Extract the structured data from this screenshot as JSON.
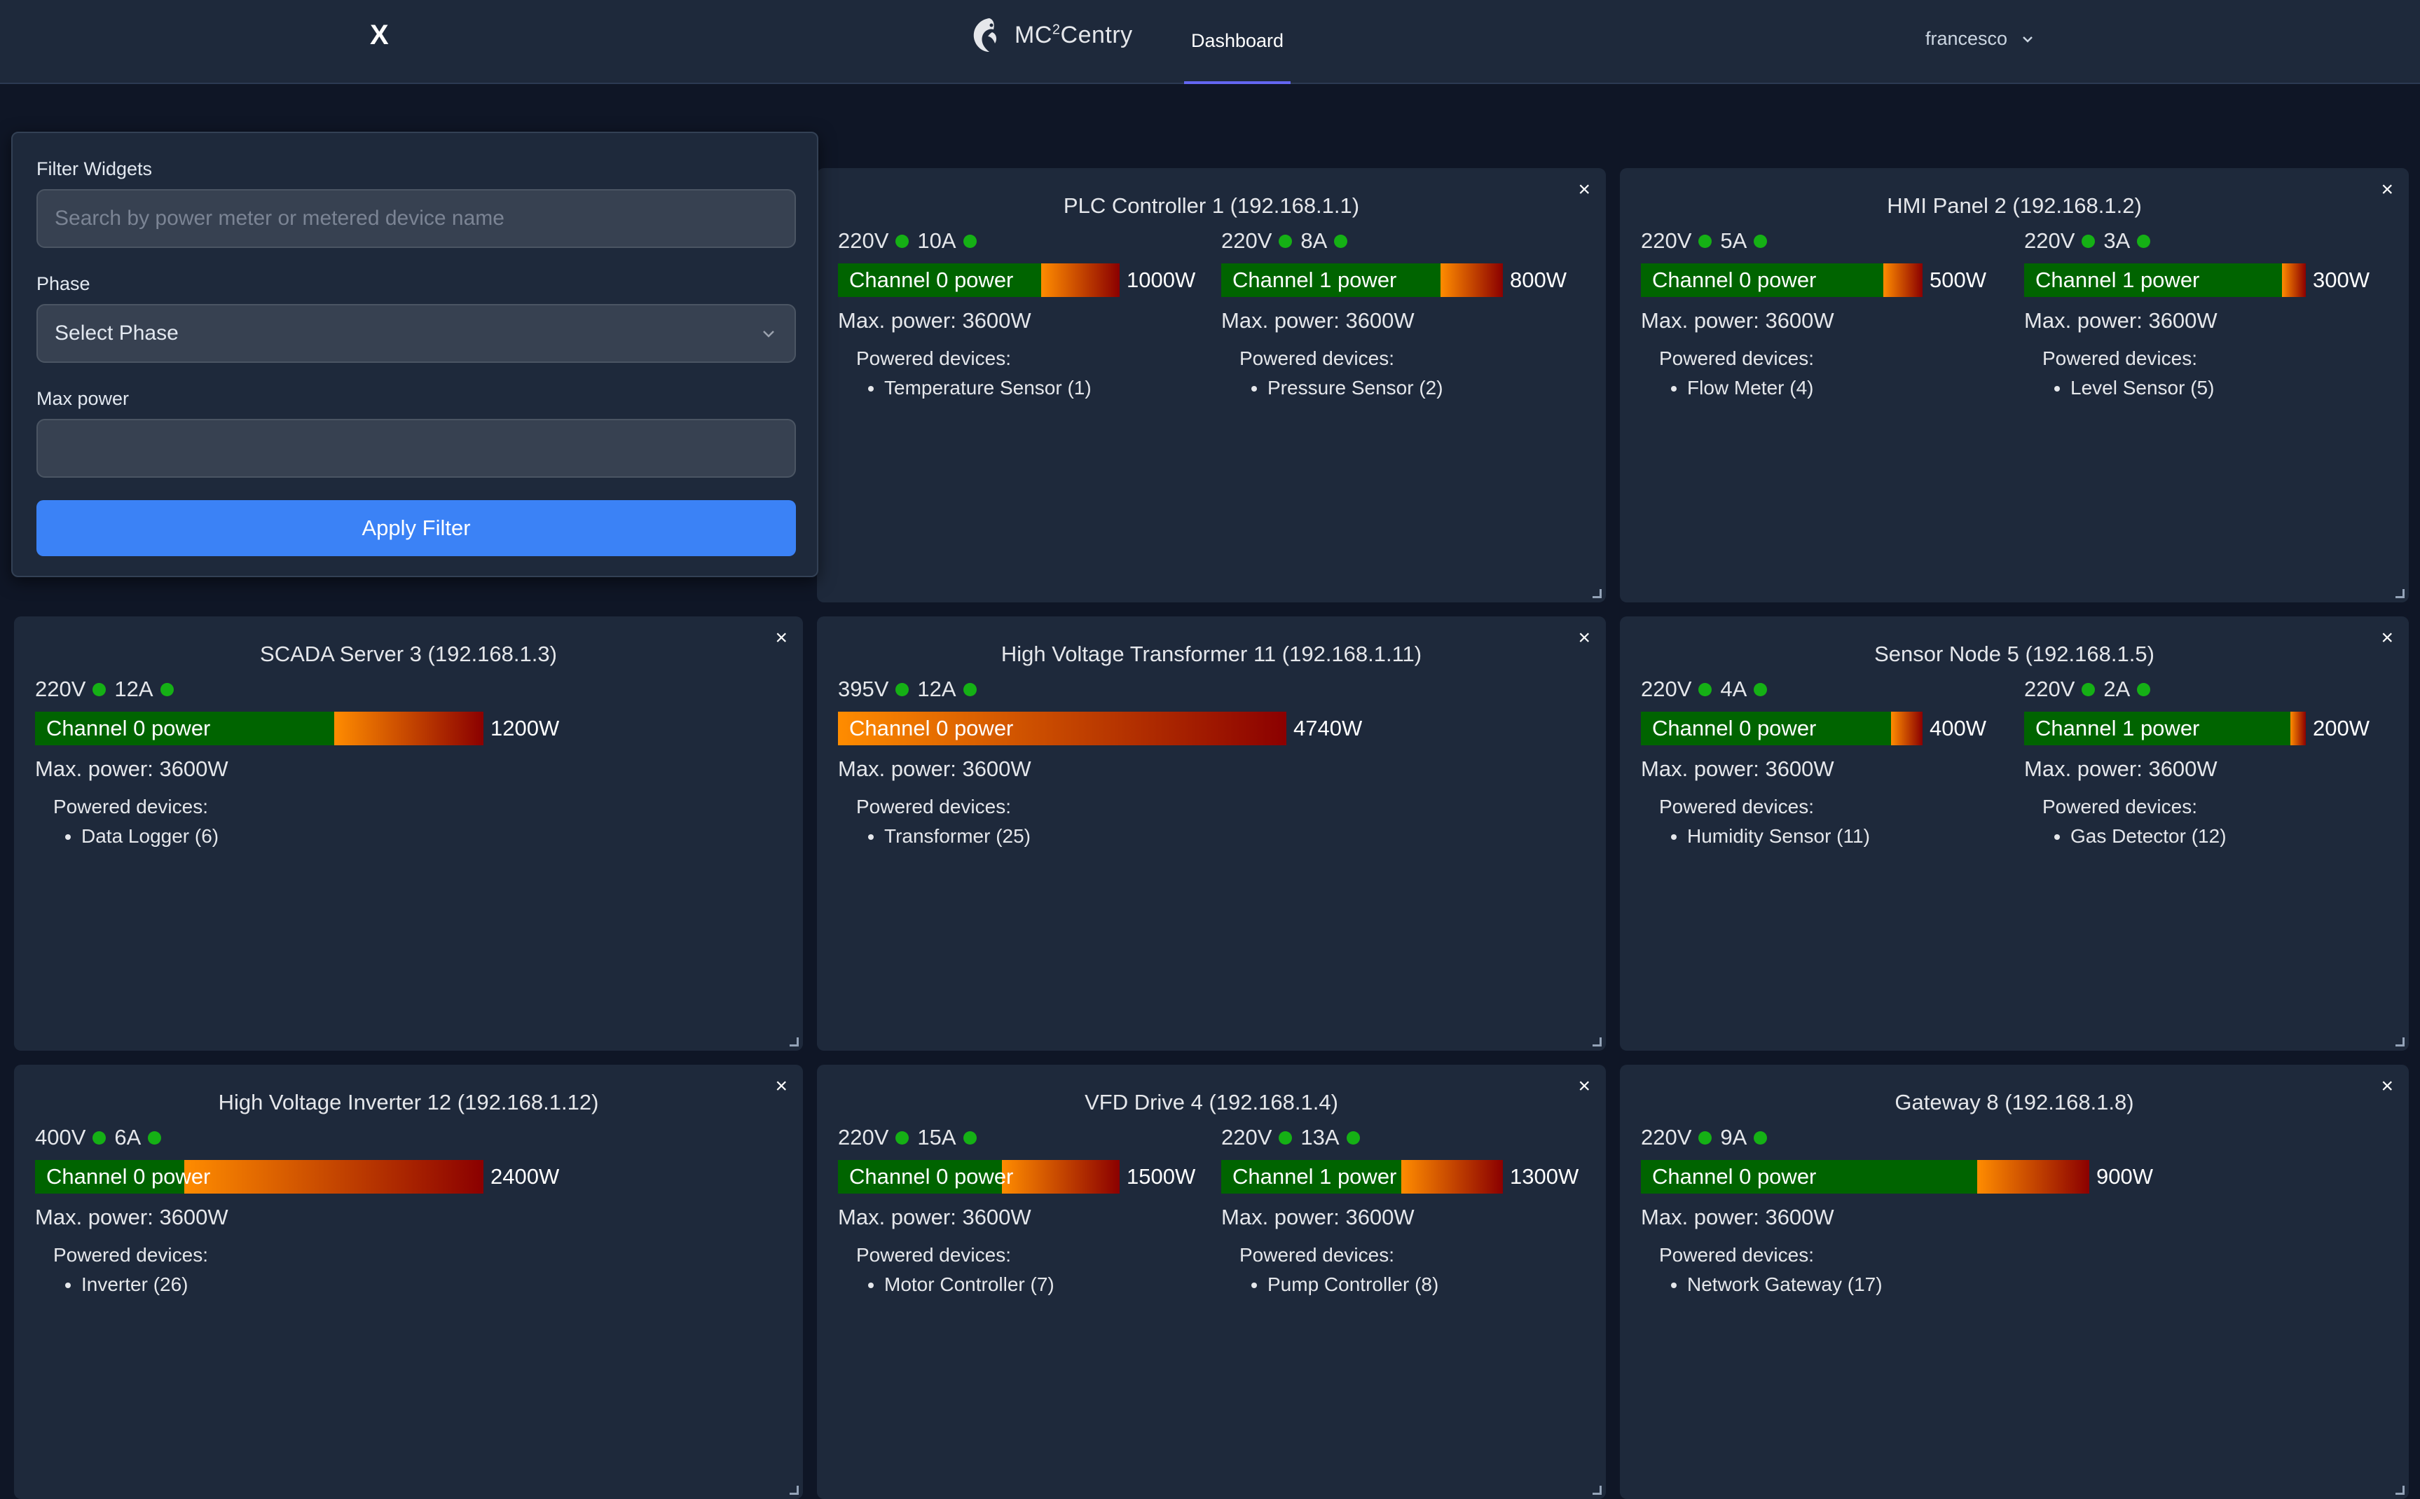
{
  "nav": {
    "close_label": "X",
    "brand_name": "MC",
    "brand_sup": "2",
    "brand_suffix": "Centry",
    "tab_dashboard": "Dashboard",
    "username": "francesco",
    "user_chevron_icon": "chevron-down-icon",
    "tab_accent": "#6366f1"
  },
  "filter": {
    "title": "Filter Widgets",
    "search_placeholder": "Search by power meter or metered device name",
    "search_value": "",
    "phase_label": "Phase",
    "phase_selected": "Select Phase",
    "max_power_label": "Max power",
    "max_power_value": "",
    "apply_label": "Apply Filter",
    "apply_color": "#3b82f6"
  },
  "colors": {
    "bar_base": "#006400",
    "bar_gradient_start": "#ff8c00",
    "bar_gradient_end": "#8b0000",
    "status_dot": "#15b015"
  },
  "widgets": [
    {
      "title": "PLC Controller 1 (192.168.1.1)",
      "channels": [
        {
          "voltage": "220V",
          "current": "10A",
          "label": "Channel 0 power",
          "power": "1000W",
          "power_w": 1000,
          "max_power": "Max. power: 3600W",
          "devices_title": "Powered devices:",
          "devices": [
            "Temperature Sensor (1)"
          ]
        },
        {
          "voltage": "220V",
          "current": "8A",
          "label": "Channel 1 power",
          "power": "800W",
          "power_w": 800,
          "max_power": "Max. power: 3600W",
          "devices_title": "Powered devices:",
          "devices": [
            "Pressure Sensor (2)"
          ]
        }
      ]
    },
    {
      "title": "HMI Panel 2 (192.168.1.2)",
      "channels": [
        {
          "voltage": "220V",
          "current": "5A",
          "label": "Channel 0 power",
          "power": "500W",
          "power_w": 500,
          "max_power": "Max. power: 3600W",
          "devices_title": "Powered devices:",
          "devices": [
            "Flow Meter (4)"
          ]
        },
        {
          "voltage": "220V",
          "current": "3A",
          "label": "Channel 1 power",
          "power": "300W",
          "power_w": 300,
          "max_power": "Max. power: 3600W",
          "devices_title": "Powered devices:",
          "devices": [
            "Level Sensor (5)"
          ]
        }
      ]
    },
    {
      "title": "SCADA Server 3 (192.168.1.3)",
      "channels": [
        {
          "voltage": "220V",
          "current": "12A",
          "label": "Channel 0 power",
          "power": "1200W",
          "power_w": 1200,
          "max_power": "Max. power: 3600W",
          "devices_title": "Powered devices:",
          "devices": [
            "Data Logger (6)"
          ]
        }
      ]
    },
    {
      "title": "High Voltage Transformer 11 (192.168.1.11)",
      "channels": [
        {
          "voltage": "395V",
          "current": "12A",
          "label": "Channel 0 power",
          "power": "4740W",
          "power_w": 4740,
          "max_power": "Max. power: 3600W",
          "devices_title": "Powered devices:",
          "devices": [
            "Transformer (25)"
          ]
        }
      ]
    },
    {
      "title": "Sensor Node 5 (192.168.1.5)",
      "channels": [
        {
          "voltage": "220V",
          "current": "4A",
          "label": "Channel 0 power",
          "power": "400W",
          "power_w": 400,
          "max_power": "Max. power: 3600W",
          "devices_title": "Powered devices:",
          "devices": [
            "Humidity Sensor (11)"
          ]
        },
        {
          "voltage": "220V",
          "current": "2A",
          "label": "Channel 1 power",
          "power": "200W",
          "power_w": 200,
          "max_power": "Max. power: 3600W",
          "devices_title": "Powered devices:",
          "devices": [
            "Gas Detector (12)"
          ]
        }
      ]
    },
    {
      "title": "High Voltage Inverter 12 (192.168.1.12)",
      "channels": [
        {
          "voltage": "400V",
          "current": "6A",
          "label": "Channel 0 power",
          "power": "2400W",
          "power_w": 2400,
          "max_power": "Max. power: 3600W",
          "devices_title": "Powered devices:",
          "devices": [
            "Inverter (26)"
          ]
        }
      ]
    },
    {
      "title": "VFD Drive 4 (192.168.1.4)",
      "channels": [
        {
          "voltage": "220V",
          "current": "15A",
          "label": "Channel 0 power",
          "power": "1500W",
          "power_w": 1500,
          "max_power": "Max. power: 3600W",
          "devices_title": "Powered devices:",
          "devices": [
            "Motor Controller (7)"
          ]
        },
        {
          "voltage": "220V",
          "current": "13A",
          "label": "Channel 1 power",
          "power": "1300W",
          "power_w": 1300,
          "max_power": "Max. power: 3600W",
          "devices_title": "Powered devices:",
          "devices": [
            "Pump Controller (8)"
          ]
        }
      ]
    },
    {
      "title": "Gateway 8 (192.168.1.8)",
      "channels": [
        {
          "voltage": "220V",
          "current": "9A",
          "label": "Channel 0 power",
          "power": "900W",
          "power_w": 900,
          "max_power": "Max. power: 3600W",
          "devices_title": "Powered devices:",
          "devices": [
            "Network Gateway (17)"
          ]
        }
      ]
    }
  ]
}
